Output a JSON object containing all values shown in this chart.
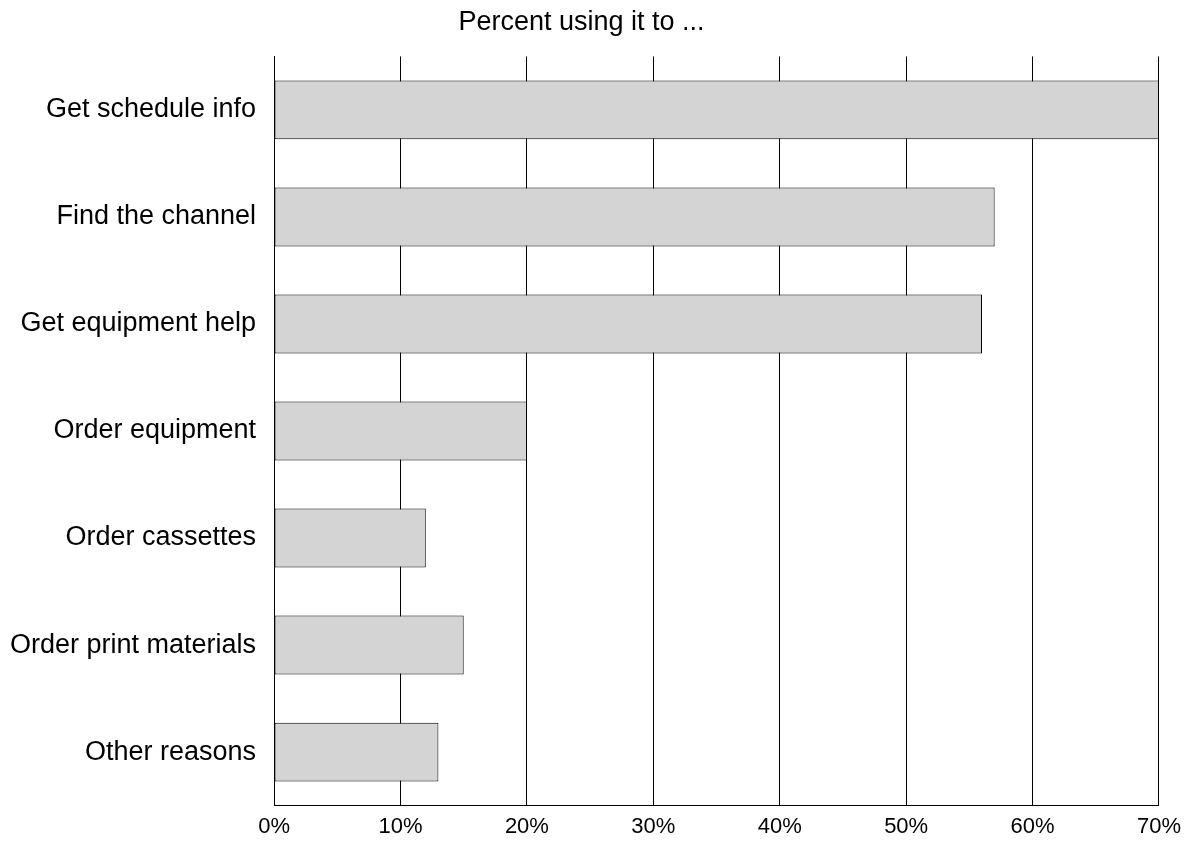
{
  "chart_data": {
    "type": "bar",
    "orientation": "horizontal",
    "title": "Percent using it to ...",
    "categories": [
      "Get schedule info",
      "Find the channel",
      "Get equipment help",
      "Order equipment",
      "Order cassettes",
      "Order print materials",
      "Other reasons"
    ],
    "values": [
      70,
      57,
      56,
      20,
      12,
      15,
      13
    ],
    "color": "#d4d4d4",
    "xlim": [
      0,
      70
    ],
    "xticks": [
      {
        "value": 0,
        "label": "0%"
      },
      {
        "value": 10,
        "label": "10%"
      },
      {
        "value": 20,
        "label": "20%"
      },
      {
        "value": 30,
        "label": "30%"
      },
      {
        "value": 40,
        "label": "40%"
      },
      {
        "value": 50,
        "label": "50%"
      },
      {
        "value": 60,
        "label": "60%"
      },
      {
        "value": 70,
        "label": "70%"
      }
    ],
    "grid": "x"
  }
}
